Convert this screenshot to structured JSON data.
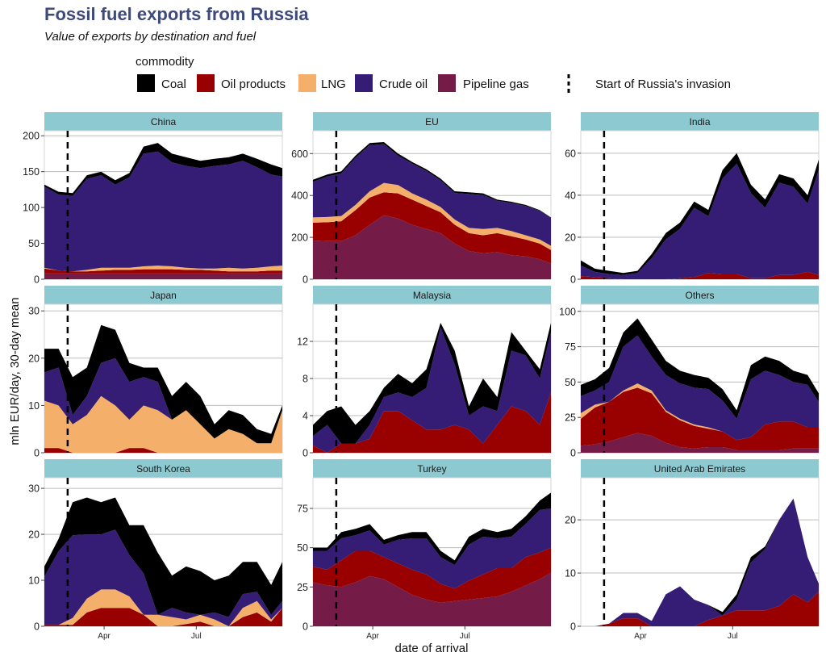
{
  "chart_data": {
    "type": "area",
    "stacked": true,
    "title": "Fossil fuel exports from Russia",
    "subtitle": "Value of exports by destination and fuel",
    "xlabel": "date of arrival",
    "ylabel": "mln EUR/day, 30-day mean",
    "legend_title": "commodity",
    "legend_position": "top",
    "grid": true,
    "stack_order_bottom_up": [
      "Pipeline gas",
      "Oil products",
      "LNG",
      "Crude oil",
      "Coal"
    ],
    "legend": [
      {
        "name": "Coal",
        "color": "#000000"
      },
      {
        "name": "Oil products",
        "color": "#990000"
      },
      {
        "name": "LNG",
        "color": "#F4B06A"
      },
      {
        "name": "Crude oil",
        "color": "#351C75"
      },
      {
        "name": "Pipeline gas",
        "color": "#741B47"
      }
    ],
    "event": {
      "label": "Start of Russia's invasion",
      "date": "2022-02-24"
    },
    "xlim": [
      "2022-02-01",
      "2022-09-24"
    ],
    "xticks": [
      {
        "date": "2022-04-01",
        "label": "Apr"
      },
      {
        "date": "2022-07-01",
        "label": "Jul"
      }
    ],
    "x": [
      "2022-02-01",
      "2022-02-15",
      "2022-03-01",
      "2022-03-15",
      "2022-03-29",
      "2022-04-12",
      "2022-04-26",
      "2022-05-10",
      "2022-05-24",
      "2022-06-07",
      "2022-06-21",
      "2022-07-05",
      "2022-07-19",
      "2022-08-02",
      "2022-08-16",
      "2022-08-30",
      "2022-09-13",
      "2022-09-24"
    ],
    "facets": [
      {
        "name": "China",
        "ylim": [
          0,
          207
        ],
        "yticks": [
          0,
          50,
          100,
          150,
          200
        ],
        "series": {
          "Pipeline gas": [
            8,
            8,
            8,
            8,
            8,
            8,
            8,
            8,
            8,
            8,
            8,
            8,
            8,
            8,
            8,
            8,
            8,
            8
          ],
          "Oil products": [
            7,
            4,
            3,
            3,
            4,
            5,
            5,
            6,
            6,
            6,
            5,
            5,
            4,
            3,
            3,
            3,
            4,
            4
          ],
          "LNG": [
            1,
            0,
            0,
            2,
            4,
            3,
            3,
            4,
            5,
            4,
            3,
            2,
            3,
            5,
            4,
            5,
            6,
            7
          ],
          "Crude oil": [
            113,
            106,
            105,
            127,
            129,
            116,
            126,
            157,
            159,
            145,
            142,
            140,
            143,
            144,
            150,
            140,
            128,
            124
          ],
          "Coal": [
            3,
            4,
            4,
            5,
            5,
            6,
            6,
            10,
            12,
            12,
            12,
            10,
            10,
            10,
            10,
            12,
            14,
            12
          ]
        }
      },
      {
        "name": "EU",
        "ylim": [
          0,
          709
        ],
        "yticks": [
          0,
          200,
          400,
          600
        ],
        "series": {
          "Pipeline gas": [
            185,
            182,
            182,
            210,
            260,
            305,
            290,
            260,
            240,
            220,
            170,
            135,
            125,
            130,
            115,
            110,
            95,
            75
          ],
          "Oil products": [
            85,
            90,
            95,
            120,
            130,
            110,
            120,
            120,
            110,
            100,
            90,
            85,
            85,
            90,
            90,
            80,
            75,
            65
          ],
          "LNG": [
            25,
            25,
            25,
            25,
            30,
            45,
            40,
            30,
            30,
            25,
            25,
            25,
            30,
            25,
            25,
            20,
            20,
            20
          ],
          "Crude oil": [
            170,
            193,
            203,
            225,
            220,
            185,
            140,
            142,
            137,
            127,
            127,
            162,
            162,
            129,
            134,
            140,
            137,
            134
          ],
          "Coal": [
            10,
            10,
            10,
            10,
            10,
            10,
            10,
            8,
            8,
            8,
            8,
            8,
            8,
            6,
            6,
            5,
            3,
            1
          ]
        }
      },
      {
        "name": "India",
        "ylim": [
          0,
          70.7
        ],
        "yticks": [
          0,
          20,
          40,
          60
        ],
        "series": {
          "Oil products": [
            1.5,
            1,
            0.5,
            0,
            0,
            0,
            0,
            0.5,
            1,
            3,
            2.5,
            2.5,
            0.5,
            0.5,
            2,
            2,
            3.5,
            2
          ],
          "Crude oil": [
            5,
            2.5,
            2,
            2,
            3,
            10,
            19,
            23.5,
            33,
            27,
            45.5,
            52.5,
            40.5,
            33.5,
            44,
            42,
            32.5,
            50
          ],
          "Coal": [
            2.5,
            1.5,
            1.5,
            1,
            1,
            2,
            3,
            3,
            3,
            3,
            4,
            5,
            4,
            4,
            4,
            4,
            4,
            5
          ]
        }
      },
      {
        "name": "Japan",
        "ylim": [
          0,
          31.4
        ],
        "yticks": [
          0,
          10,
          20,
          30
        ],
        "series": {
          "Oil products": [
            1,
            1,
            0,
            0,
            0,
            0,
            1,
            1,
            0,
            0,
            0,
            0,
            0,
            0,
            0,
            0,
            0,
            0
          ],
          "LNG": [
            10,
            9,
            6,
            8,
            12,
            10,
            6,
            9,
            9,
            7,
            9,
            6,
            3,
            5,
            4,
            2,
            2,
            9
          ],
          "Crude oil": [
            6,
            8,
            2,
            4,
            7,
            10,
            8,
            6,
            6,
            0,
            0,
            0,
            0,
            0,
            0,
            0,
            0,
            0
          ],
          "Coal": [
            5,
            4,
            8,
            6,
            8,
            6,
            4,
            2,
            3,
            5,
            6,
            6,
            3,
            4,
            4,
            3,
            2,
            1
          ]
        }
      },
      {
        "name": "Malaysia",
        "ylim": [
          0,
          16
        ],
        "yticks": [
          0,
          4,
          8,
          12
        ],
        "series": {
          "Oil products": [
            0.8,
            0,
            1,
            1,
            1.5,
            4.5,
            4.5,
            3.5,
            2.5,
            2.5,
            3,
            2.5,
            1,
            3,
            5,
            4.5,
            3,
            6.5
          ],
          "Crude oil": [
            1,
            3,
            0,
            0,
            1.5,
            1.5,
            2,
            2.5,
            4.5,
            11,
            6.5,
            1.5,
            4,
            1.5,
            6,
            6,
            5,
            6.5
          ],
          "Coal": [
            1.2,
            1.5,
            4,
            2,
            1.5,
            1,
            2,
            1.5,
            2,
            0.5,
            1.5,
            1,
            3,
            1.5,
            2,
            0.5,
            1,
            1
          ]
        }
      },
      {
        "name": "Others",
        "ylim": [
          0,
          105
        ],
        "yticks": [
          0,
          25,
          50,
          75,
          100
        ],
        "series": {
          "Pipeline gas": [
            5,
            6,
            8,
            11,
            14,
            12,
            7,
            4,
            3,
            4,
            4,
            2,
            2,
            2,
            2,
            3,
            3,
            3
          ],
          "Oil products": [
            19,
            26,
            28,
            32,
            32,
            30,
            22,
            19,
            16,
            13,
            11,
            7,
            9,
            18,
            20,
            19,
            15,
            15
          ],
          "LNG": [
            4,
            2,
            0,
            1,
            3,
            2,
            1,
            1,
            1,
            1,
            0,
            0,
            0,
            0,
            0,
            0,
            0,
            0
          ],
          "Crude oil": [
            12,
            10,
            14,
            31,
            34,
            24,
            25,
            25,
            26,
            27,
            22,
            15,
            41,
            38,
            33,
            28,
            30,
            18
          ],
          "Coal": [
            8,
            8,
            10,
            10,
            12,
            12,
            10,
            9,
            9,
            8,
            8,
            6,
            10,
            10,
            10,
            8,
            7,
            6
          ]
        }
      },
      {
        "name": "South Korea",
        "ylim": [
          0,
          32.3
        ],
        "yticks": [
          0,
          10,
          20,
          30
        ],
        "series": {
          "Oil products": [
            0.3,
            0.3,
            0.3,
            3,
            4,
            4,
            4,
            2.5,
            0,
            0,
            0.5,
            1,
            0,
            0,
            2,
            3,
            1,
            4
          ],
          "LNG": [
            0,
            0,
            1.5,
            3,
            4,
            4,
            2.5,
            0,
            2.5,
            2,
            1,
            1.5,
            1.5,
            0,
            2,
            2.5,
            0.5,
            0
          ],
          "Crude oil": [
            10.5,
            16,
            18,
            14,
            12,
            13,
            9,
            9,
            0,
            2,
            1.5,
            0,
            1.5,
            2,
            3,
            2,
            1,
            1.5
          ],
          "Coal": [
            2.2,
            2.7,
            7.2,
            8,
            7,
            7,
            6.5,
            10.5,
            13.5,
            7,
            10,
            9.5,
            7,
            9,
            7,
            6.5,
            6.5,
            8.5
          ]
        }
      },
      {
        "name": "Turkey",
        "ylim": [
          0,
          94.5
        ],
        "yticks": [
          0,
          25,
          50,
          75
        ],
        "series": {
          "Pipeline gas": [
            28,
            26,
            25,
            28,
            32,
            30,
            25,
            20,
            17,
            15,
            16,
            17,
            18,
            19,
            22,
            26,
            30,
            34
          ],
          "Oil products": [
            10,
            10,
            17,
            20,
            16,
            14,
            15,
            16,
            16,
            12,
            8,
            12,
            15,
            18,
            15,
            18,
            17,
            16
          ],
          "Crude oil": [
            10,
            12,
            14,
            10,
            13,
            8,
            15,
            20,
            23,
            17,
            15,
            23,
            24,
            19,
            20,
            21,
            27,
            25
          ],
          "Coal": [
            2,
            2,
            4,
            4,
            4,
            3,
            3,
            4,
            4,
            4,
            3,
            5,
            5,
            4,
            5,
            5,
            6,
            10
          ]
        }
      },
      {
        "name": "United Arab Emirates",
        "ylim": [
          0,
          27.9
        ],
        "yticks": [
          0,
          10,
          20
        ],
        "series": {
          "Oil products": [
            0,
            0,
            0.5,
            1.5,
            1.5,
            0,
            0,
            0,
            0,
            1.2,
            2,
            3,
            3,
            3,
            3.8,
            6,
            4.5,
            6.5
          ],
          "Crude oil": [
            0,
            0,
            0,
            1,
            1,
            1,
            6,
            7.5,
            5,
            2.8,
            0,
            2,
            9,
            11.5,
            16.2,
            18,
            8.5,
            1.5
          ],
          "Coal": [
            0,
            0,
            0,
            0,
            0,
            0,
            0,
            0,
            0,
            0,
            0.7,
            1,
            1,
            0.5,
            0,
            0,
            0,
            0
          ]
        }
      }
    ],
    "strip_color": "#8DC9D1",
    "title_color": "#3D4A7B"
  }
}
